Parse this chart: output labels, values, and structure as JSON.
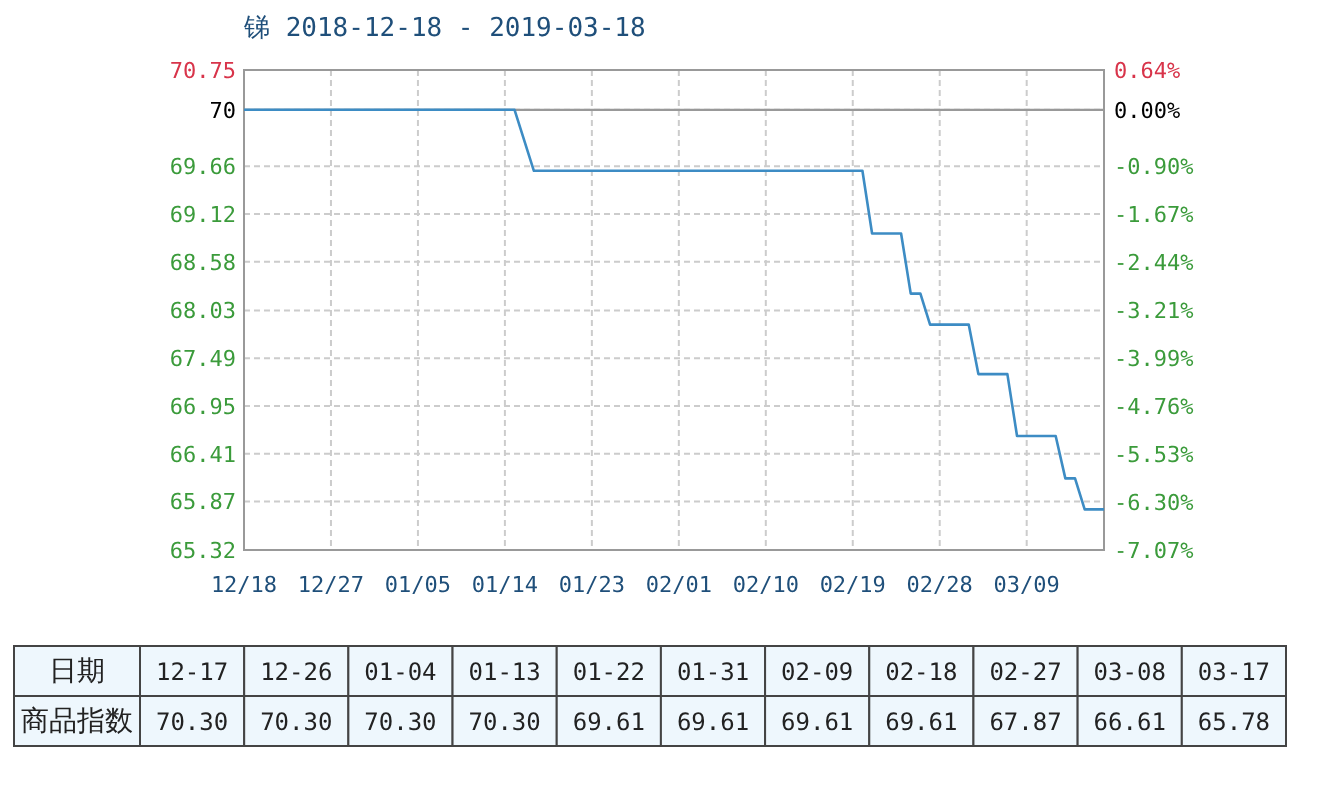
{
  "chart_data": [
    {
      "type": "line",
      "title": "锑 2018-12-18 - 2019-03-18",
      "x": [
        "2018-12-18",
        "2019-01-15",
        "2019-01-17",
        "2019-02-20",
        "2019-02-21",
        "2019-02-24",
        "2019-02-25",
        "2019-02-26",
        "2019-02-27",
        "2019-03-03",
        "2019-03-04",
        "2019-03-07",
        "2019-03-08",
        "2019-03-12",
        "2019-03-13",
        "2019-03-14",
        "2019-03-15",
        "2019-03-17"
      ],
      "series": [
        {
          "color": "#3d8cc4",
          "values": [
            70.3,
            70.3,
            69.61,
            69.61,
            68.9,
            68.9,
            68.22,
            68.22,
            67.87,
            67.87,
            67.31,
            67.31,
            66.61,
            66.61,
            66.13,
            66.13,
            65.78,
            65.78
          ]
        }
      ],
      "xlim": [
        "2018-12-18",
        "2019-03-17"
      ],
      "xticks": [
        {
          "value": "2018-12-18",
          "label": "12/18"
        },
        {
          "value": "2018-12-27",
          "label": "12/27"
        },
        {
          "value": "2019-01-05",
          "label": "01/05"
        },
        {
          "value": "2019-01-14",
          "label": "01/14"
        },
        {
          "value": "2019-01-23",
          "label": "01/23"
        },
        {
          "value": "2019-02-01",
          "label": "02/01"
        },
        {
          "value": "2019-02-10",
          "label": "02/10"
        },
        {
          "value": "2019-02-19",
          "label": "02/19"
        },
        {
          "value": "2019-02-28",
          "label": "02/28"
        },
        {
          "value": "2019-03-09",
          "label": "03/09"
        }
      ],
      "ylim": [
        65.32,
        70.75
      ],
      "yticks": [
        65.32,
        65.87,
        66.41,
        66.95,
        67.49,
        68.03,
        68.58,
        69.12,
        69.66,
        {
          "value": 70.3,
          "label": "70"
        },
        70.75
      ],
      "y2lim": [
        -7.07,
        0.64
      ],
      "y2ticks": [
        {
          "value": -7.07,
          "label": "-7.07%"
        },
        {
          "value": -6.3,
          "label": "-6.30%"
        },
        {
          "value": -5.53,
          "label": "-5.53%"
        },
        {
          "value": -4.76,
          "label": "-4.76%"
        },
        {
          "value": -3.99,
          "label": "-3.99%"
        },
        {
          "value": -3.21,
          "label": "-3.21%"
        },
        {
          "value": -2.44,
          "label": "-2.44%"
        },
        {
          "value": -1.67,
          "label": "-1.67%"
        },
        {
          "value": -0.9,
          "label": "-0.90%"
        },
        {
          "value": 0,
          "label": "0.00%"
        },
        {
          "value": 0.64,
          "label": "0.64%"
        }
      ],
      "ref_lines": [
        {
          "axis": "y2",
          "value": 0,
          "color": "#999999"
        }
      ],
      "grid": true,
      "marker": "none",
      "line_style": "solid"
    },
    {
      "type": "other",
      "xlabel": "日期",
      "ylabel": "商品指数",
      "categories": [
        "12-17",
        "12-26",
        "01-04",
        "01-13",
        "01-22",
        "01-31",
        "02-09",
        "02-18",
        "02-27",
        "03-08",
        "03-17"
      ],
      "value_labels": [
        "70.30",
        "70.30",
        "70.30",
        "70.30",
        "69.61",
        "69.61",
        "69.61",
        "69.61",
        "67.87",
        "66.61",
        "65.78"
      ]
    }
  ]
}
